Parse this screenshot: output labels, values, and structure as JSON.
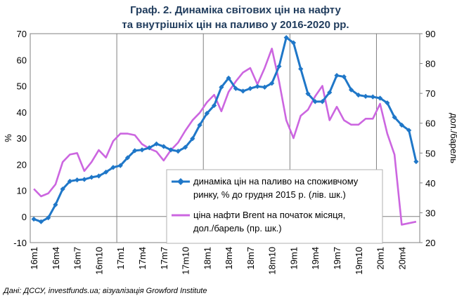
{
  "chart_data": {
    "type": "line",
    "title": [
      "Граф. 2. Динаміка світових цін на нафту",
      "та внутрішніх цін на паливо у 2016-2020 рр."
    ],
    "ylabel_left": "%",
    "ylabel_right": "дол./барель",
    "ylim_left": [
      -10,
      70
    ],
    "ylim_right": [
      20,
      90
    ],
    "yticks_left": [
      "-10",
      "0",
      "10",
      "20",
      "30",
      "40",
      "50",
      "60",
      "70"
    ],
    "yticks_right": [
      "20",
      "30",
      "40",
      "50",
      "60",
      "70",
      "80",
      "90"
    ],
    "x_tick_labels": [
      "16m1",
      "16m4",
      "16m7",
      "16m10",
      "17m1",
      "17m4",
      "17m7",
      "17m10",
      "18m1",
      "18m4",
      "18m7",
      "18m10",
      "19m1",
      "19m4",
      "19m7",
      "19m10",
      "20m1",
      "20m4"
    ],
    "grid_vertical_at": [
      "17m1",
      "18m1",
      "19m1",
      "20m1"
    ],
    "legend_placement": "lower-right",
    "series": [
      {
        "name": "динаміка цін на паливо на споживчому ринку, % до грудня 2015 р. (лів. шк.)",
        "legend_lines": [
          "динаміка цін на паливо на споживчому",
          "ринку, % до грудня 2015 р. (лів. шк.)"
        ],
        "axis": "left",
        "color": "#1f77c8",
        "marker": "diamond",
        "values": [
          -1,
          -2,
          -0.5,
          4.5,
          10.5,
          13.5,
          14,
          14.2,
          15,
          15.5,
          17,
          18.8,
          19.5,
          22.5,
          25.2,
          25.5,
          26.3,
          27.8,
          26.8,
          25.5,
          25,
          26.5,
          29.8,
          35,
          39.5,
          42.5,
          49.5,
          53,
          49,
          48,
          49,
          49.8,
          49.5,
          51,
          57.5,
          68.5,
          66.5,
          56.5,
          47,
          44,
          44,
          47.5,
          54,
          53.5,
          48.5,
          46.5,
          46,
          45.8,
          45.3,
          43.5,
          38,
          35,
          33,
          21
        ]
      },
      {
        "name": "ціна нафти Brent на початок місяця, дол./барель (пр. шк.)",
        "legend_lines": [
          "ціна нафти Brent на початок місяця,",
          "дол./барель (пр. шк.)"
        ],
        "axis": "right",
        "color": "#cc66e0",
        "marker": "none",
        "values": [
          38,
          35.5,
          36.5,
          39.5,
          47,
          49.5,
          50,
          44,
          47,
          51,
          48.5,
          54,
          56.5,
          56.5,
          56,
          53,
          51.5,
          50.5,
          47.5,
          51,
          53.5,
          57.5,
          61,
          63.5,
          67,
          69.5,
          64,
          70.5,
          74,
          77,
          78.5,
          73,
          78.5,
          85,
          74,
          61,
          55,
          62.5,
          64.5,
          69,
          72.5,
          61,
          65.5,
          61,
          59.5,
          59.5,
          61.5,
          61.5,
          66.5,
          56.5,
          49.5,
          26,
          26.5,
          27
        ]
      }
    ]
  },
  "source_note": "Дані: ДССУ, investfunds.ua; візуалізація Growford Institute"
}
